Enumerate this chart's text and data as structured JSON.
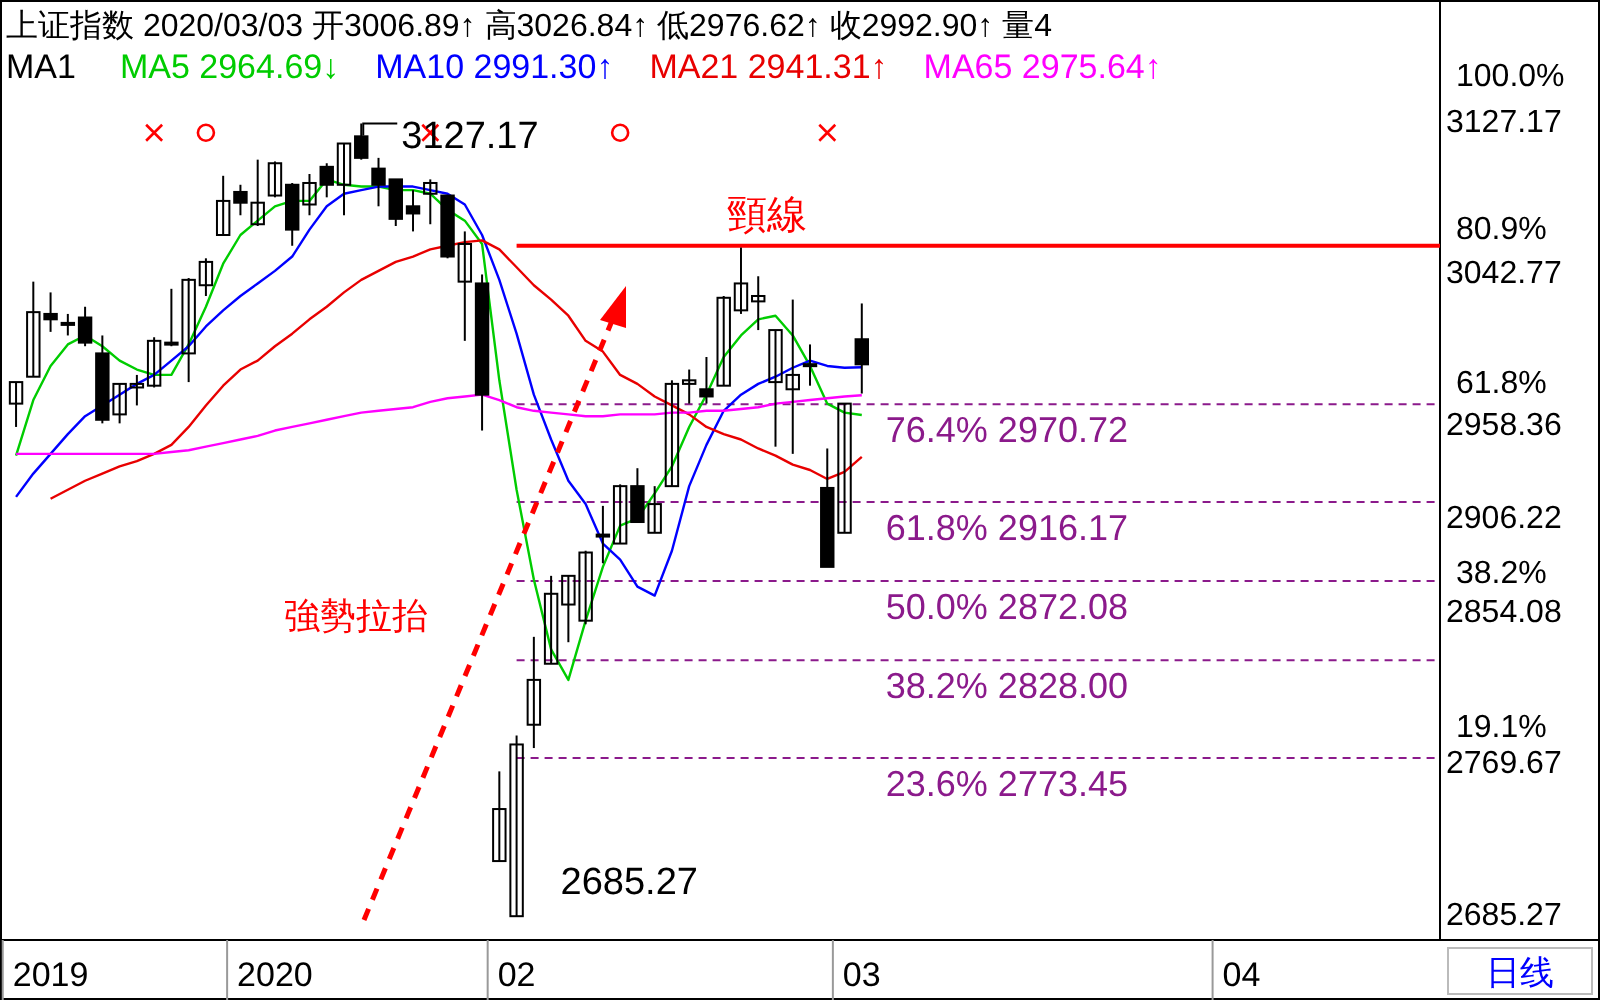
{
  "chart_data": {
    "type": "candlestick",
    "title": "上证指数 2020/03/03 开3006.89↑ 高3026.84↑ 低2976.62↑ 收2992.90↑ 量4",
    "categories": [
      null,
      null,
      "2019",
      null,
      null,
      null,
      null,
      null,
      null,
      null,
      null,
      null,
      null,
      null,
      null,
      "2020",
      null,
      null,
      null,
      null,
      null,
      null,
      null,
      null,
      null,
      null,
      null,
      null,
      null,
      "02",
      null,
      null,
      null,
      null,
      null,
      null,
      null,
      null,
      null,
      null,
      null,
      null,
      null,
      null,
      null,
      null,
      null,
      null,
      null,
      "03",
      null,
      null,
      null,
      null,
      null,
      null,
      null,
      null,
      null,
      null,
      null,
      null,
      null,
      null,
      null,
      null,
      null,
      null,
      null,
      null,
      null,
      "04",
      null,
      null,
      null,
      null,
      null,
      null,
      null,
      null,
      null,
      null,
      null
    ],
    "series": [
      {
        "type": "candlestick",
        "color": "#000000",
        "ohlc": [
          [
            2971,
            2983,
            2958,
            2983
          ],
          [
            2986,
            3039,
            2986,
            3022
          ],
          [
            3021,
            3033,
            3011,
            3018
          ],
          [
            3016,
            3021,
            3009,
            3015
          ],
          [
            3019,
            3025,
            3003,
            3005
          ],
          [
            2999,
            3009,
            2960,
            2962
          ],
          [
            2965,
            2982,
            2960,
            2982
          ],
          [
            2980,
            2987,
            2970,
            2982
          ],
          [
            2981,
            3008,
            2980,
            3006
          ],
          [
            3005,
            3035,
            3003,
            3004
          ],
          [
            2999,
            3041,
            2983,
            3040
          ],
          [
            3037,
            3052,
            3031,
            3050
          ],
          [
            3065,
            3098,
            3065,
            3084
          ],
          [
            3089,
            3093,
            3076,
            3083
          ],
          [
            3071,
            3107,
            3070,
            3083
          ],
          [
            3087,
            3106,
            3086,
            3105
          ],
          [
            3093,
            3094,
            3059,
            3068
          ],
          [
            3082,
            3099,
            3076,
            3094
          ],
          [
            3103,
            3105,
            3086,
            3093
          ],
          [
            3093,
            3116,
            3076,
            3116
          ],
          [
            3120,
            3127.17,
            3107,
            3108
          ],
          [
            3102,
            3108,
            3081,
            3093
          ],
          [
            3096,
            3096,
            3070,
            3074
          ],
          [
            3081,
            3090,
            3067,
            3077
          ],
          [
            3088,
            3096,
            3071,
            3094
          ],
          [
            3087,
            3087,
            3052,
            3053
          ],
          [
            3039,
            3067,
            3006,
            3060
          ],
          [
            3038,
            3043,
            2956,
            2976
          ],
          [
            2716,
            2766,
            2716,
            2745
          ],
          [
            2685.27,
            2786,
            2685.27,
            2781
          ],
          [
            2792,
            2841,
            2779,
            2817
          ],
          [
            2826,
            2875,
            2826,
            2865
          ],
          [
            2859,
            2875,
            2838,
            2875
          ],
          [
            2850,
            2889,
            2848,
            2888
          ],
          [
            2897,
            2914,
            2882,
            2898
          ],
          [
            2893,
            2926,
            2893,
            2925
          ],
          [
            2925,
            2935,
            2905,
            2905
          ],
          [
            2899,
            2925,
            2899,
            2915
          ],
          [
            2925,
            2984,
            2925,
            2982
          ],
          [
            2982,
            2990,
            2971,
            2984
          ],
          [
            2979,
            2997,
            2971,
            2975
          ],
          [
            2981,
            3031,
            2981,
            3030
          ],
          [
            3023,
            3058,
            3021,
            3038
          ],
          [
            3028,
            3042,
            3012,
            3031
          ],
          [
            2983,
            3012,
            2947,
            3012
          ],
          [
            2979,
            3029,
            2943,
            2987
          ],
          [
            2993,
            3004,
            2981,
            2992
          ],
          [
            2924,
            2946,
            2880,
            2880
          ],
          [
            2899,
            2971,
            2899,
            2971
          ],
          [
            3006.89,
            3026.84,
            2976.62,
            2992.9
          ],
          null,
          null,
          null,
          null,
          null,
          null,
          null,
          null,
          null,
          null,
          null,
          null,
          null,
          null,
          null,
          null,
          null,
          null,
          null,
          null,
          null,
          null,
          null,
          null,
          null,
          null,
          null,
          null,
          null,
          null,
          null,
          null,
          null
        ]
      },
      {
        "type": "line",
        "name": "MA5 2964.69↓",
        "color": "#00cc00",
        "values": [
          2942,
          2973,
          2992,
          3004,
          3009,
          3003,
          2995,
          2990,
          2987,
          2987,
          3004,
          3025,
          3049,
          3065,
          3073,
          3081,
          3084,
          3084,
          3096,
          3093,
          3092,
          3092,
          3090,
          3090,
          3088,
          3079,
          3073,
          3060,
          2984,
          2923,
          2873,
          2834,
          2817,
          2850,
          2880,
          2903,
          2907,
          2921,
          2936,
          2958,
          2976,
          2997,
          3009,
          3018,
          3020,
          3009,
          2992,
          2971,
          2966,
          2964.69,
          null,
          null,
          null,
          null,
          null,
          null,
          null,
          null,
          null,
          null,
          null,
          null,
          null,
          null,
          null,
          null,
          null,
          null,
          null,
          null,
          null,
          null,
          null,
          null,
          null,
          null,
          null,
          null,
          null,
          null,
          null,
          null,
          null
        ]
      },
      {
        "type": "line",
        "name": "MA10 2991.30↑",
        "color": "#0000ff",
        "values": [
          2919,
          2932,
          2943,
          2954,
          2964,
          2970,
          2976,
          2982,
          2987,
          2995,
          3003,
          3014,
          3023,
          3031,
          3038,
          3045,
          3053,
          3068,
          3081,
          3088,
          3090,
          3092,
          3092,
          3092,
          3090,
          3088,
          3082,
          3065,
          3040,
          3010,
          2976,
          2951,
          2928,
          2915,
          2893,
          2884,
          2869,
          2864,
          2889,
          2925,
          2948,
          2967,
          2976,
          2982,
          2986,
          2991,
          2995,
          2992,
          2991,
          2991.3,
          null,
          null,
          null,
          null,
          null,
          null,
          null,
          null,
          null,
          null,
          null,
          null,
          null,
          null,
          null,
          null,
          null,
          null,
          null,
          null,
          null,
          null,
          null,
          null,
          null,
          null,
          null,
          null,
          null,
          null,
          null,
          null,
          null
        ]
      },
      {
        "type": "line",
        "name": "MA21 2941.31↑",
        "color": "#e80000",
        "values": [
          null,
          null,
          2918,
          2923,
          2928,
          2932,
          2936,
          2939,
          2943,
          2948,
          2958,
          2970,
          2981,
          2990,
          2995,
          3003,
          3010,
          3018,
          3025,
          3033,
          3040,
          3045,
          3050,
          3053,
          3057,
          3059,
          3061,
          3062,
          3057,
          3047,
          3037,
          3029,
          3020,
          3006,
          3000,
          2987,
          2982,
          2975,
          2970,
          2965,
          2958,
          2954,
          2951,
          2946,
          2942,
          2937,
          2934,
          2929,
          2933,
          2941.31,
          null,
          null,
          null,
          null,
          null,
          null,
          null,
          null,
          null,
          null,
          null,
          null,
          null,
          null,
          null,
          null,
          null,
          null,
          null,
          null,
          null,
          null,
          null,
          null,
          null,
          null,
          null,
          null,
          null,
          null,
          null,
          null,
          null
        ]
      },
      {
        "type": "line",
        "name": "MA65 2975.64↑",
        "color": "#ff00ff",
        "values": [
          2943,
          2943,
          2943,
          2943,
          2943,
          2943,
          2943,
          2943,
          2943,
          2944,
          2945,
          2947,
          2949,
          2951,
          2953,
          2956,
          2958,
          2960,
          2962,
          2964,
          2966,
          2967,
          2968,
          2969,
          2972,
          2974,
          2975,
          2976,
          2973,
          2969,
          2967,
          2966,
          2965,
          2964,
          2964,
          2965,
          2965,
          2965,
          2966,
          2966,
          2967,
          2967,
          2968,
          2969,
          2971,
          2972,
          2973,
          2974,
          2975,
          2975.64,
          null,
          null,
          null,
          null,
          null,
          null,
          null,
          null,
          null,
          null,
          null,
          null,
          null,
          null,
          null,
          null,
          null,
          null,
          null,
          null,
          null,
          null,
          null,
          null,
          null,
          null,
          null,
          null,
          null,
          null,
          null,
          null,
          null
        ]
      },
      {
        "type": "scatter",
        "marker": "cross",
        "color": "#ff0000",
        "values": [
          null,
          null,
          null,
          null,
          null,
          null,
          null,
          null,
          3122,
          null,
          null,
          null,
          null,
          null,
          null,
          null,
          null,
          null,
          null,
          null,
          null,
          null,
          null,
          null,
          3122,
          null,
          null,
          null,
          null,
          null,
          null,
          null,
          null,
          null,
          null,
          null,
          null,
          null,
          null,
          null,
          null,
          null,
          null,
          null,
          null,
          null,
          null,
          3122,
          null,
          null,
          null,
          null,
          null,
          null,
          null,
          null,
          null,
          null,
          null,
          null,
          null,
          null,
          null,
          null,
          null,
          null,
          null,
          null,
          null,
          null,
          null,
          null,
          null,
          null,
          null,
          null,
          null,
          null,
          null,
          null,
          null,
          null,
          null
        ]
      },
      {
        "type": "scatter",
        "marker": "circle",
        "color": "#ff0000",
        "values": [
          null,
          null,
          null,
          null,
          null,
          null,
          null,
          null,
          null,
          null,
          null,
          3122,
          null,
          null,
          null,
          null,
          null,
          null,
          null,
          null,
          null,
          null,
          null,
          null,
          null,
          null,
          null,
          null,
          null,
          null,
          null,
          null,
          null,
          null,
          null,
          3122,
          null,
          null,
          null,
          null,
          null,
          null,
          null,
          null,
          null,
          null,
          null,
          null,
          null,
          null,
          null,
          null,
          null,
          null,
          null,
          null,
          null,
          null,
          null,
          null,
          null,
          null,
          null,
          null,
          null,
          null,
          null,
          null,
          null,
          null,
          null,
          null,
          null,
          null,
          null,
          null,
          null,
          null,
          null,
          null,
          null,
          null,
          null
        ]
      }
    ],
    "ylim": [
      2672,
      3196
    ],
    "yticks": [
      3127.17,
      3042.77,
      2958.36,
      2906.22,
      2854.08,
      2769.67,
      2685.27
    ],
    "y2lim": [
      -7.2,
      109.6
    ],
    "y2ticks": [
      {
        "value": 100,
        "label": "100.0%"
      },
      {
        "value": 80.9,
        "label": "80.9%"
      },
      {
        "value": 61.8,
        "label": "61.8%"
      },
      {
        "value": 38.2,
        "label": "38.2%"
      },
      {
        "value": 19.1,
        "label": "19.1%"
      }
    ],
    "legend": "top left",
    "legend_title": "MA1",
    "ref_lines": [
      {
        "axis": "y",
        "value": 3059,
        "label": "頸線",
        "color": "#ff0000",
        "line_style": "solid"
      },
      {
        "axis": "y",
        "value": 2970.72,
        "label": "76.4% 2970.72",
        "color": "#8b1a8b",
        "line_style": "dashed"
      },
      {
        "axis": "y",
        "value": 2916.17,
        "label": "61.8% 2916.17",
        "color": "#8b1a8b",
        "line_style": "dashed"
      },
      {
        "axis": "y",
        "value": 2872.08,
        "label": "50.0% 2872.08",
        "color": "#8b1a8b",
        "line_style": "dashed"
      },
      {
        "axis": "y",
        "value": 2828.0,
        "label": "38.2% 2828.00",
        "color": "#8b1a8b",
        "line_style": "dashed"
      },
      {
        "axis": "y",
        "value": 2773.45,
        "label": "23.6% 2773.45",
        "color": "#8b1a8b",
        "line_style": "dashed"
      }
    ],
    "annotations": [
      "強勢拉抬",
      "日线",
      "3127.17",
      "2685.27"
    ]
  }
}
